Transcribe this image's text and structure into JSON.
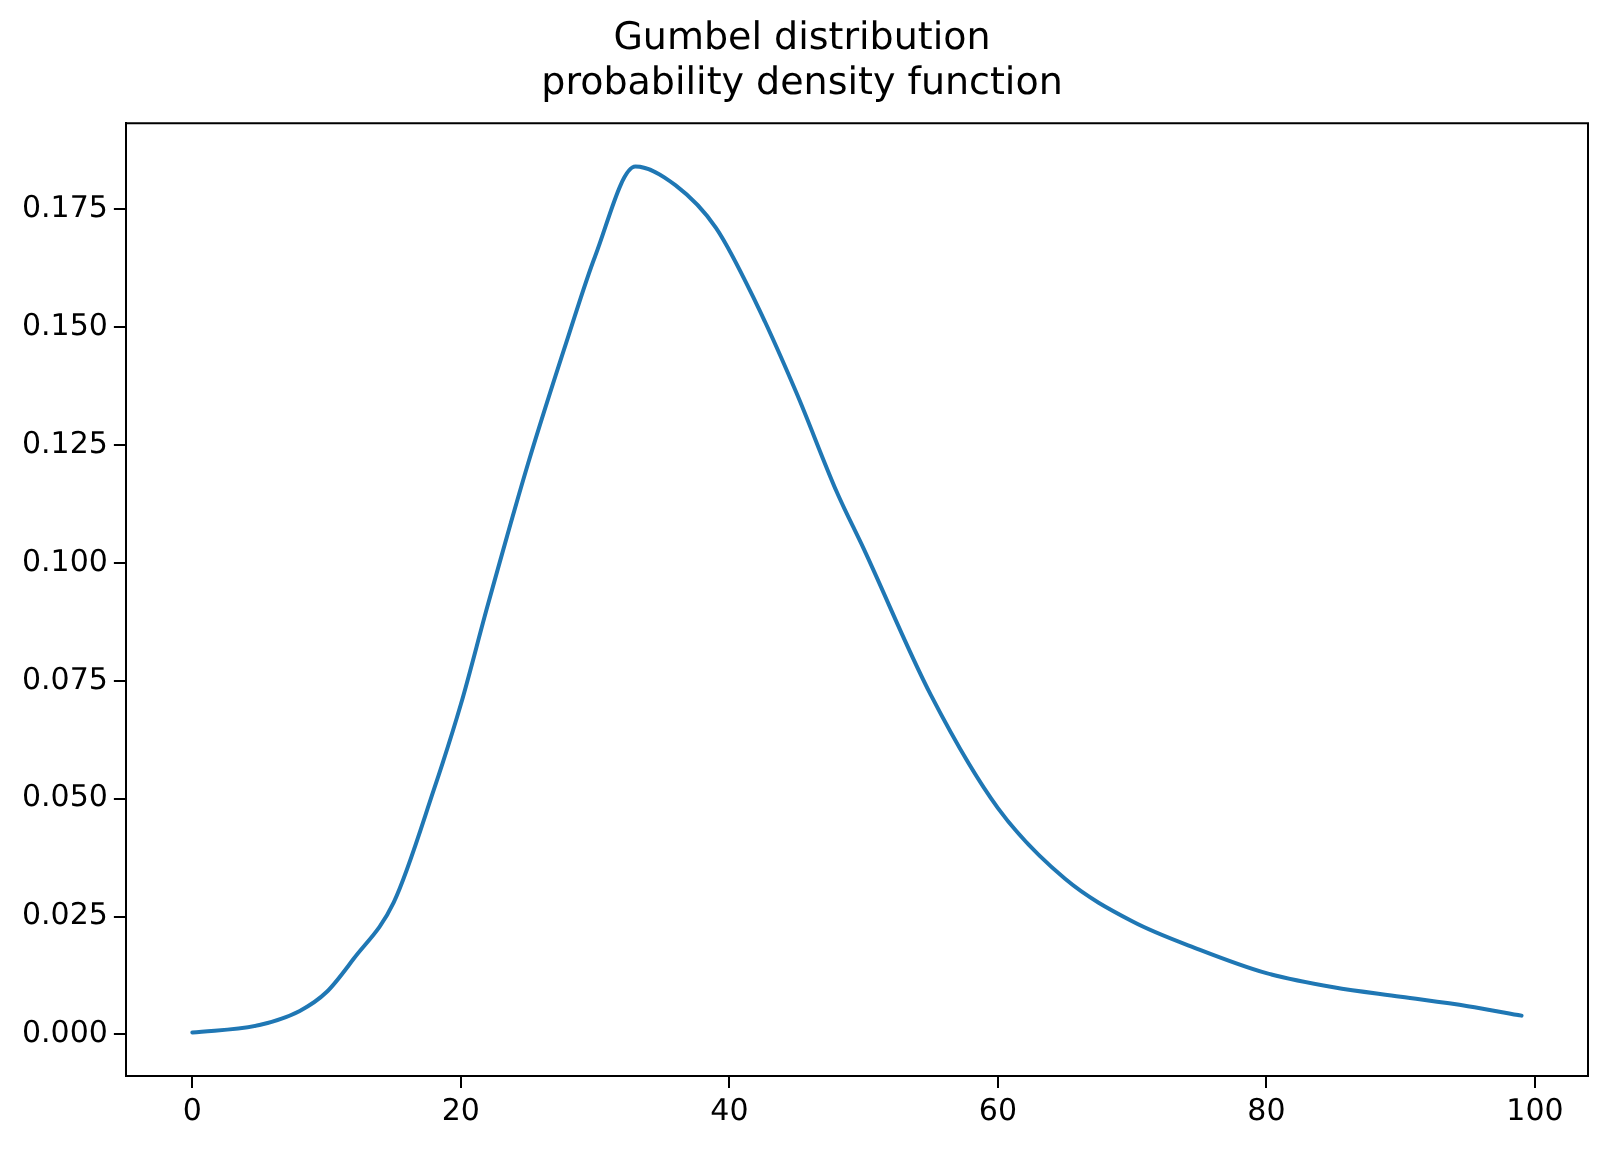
{
  "chart_data": {
    "type": "line",
    "title": "Gumbel distribution\nprobability density function",
    "x": [
      0,
      5,
      8,
      10,
      12,
      15,
      18,
      20,
      22,
      25,
      28,
      30,
      33,
      36,
      39,
      42,
      45,
      48,
      50,
      55,
      60,
      65,
      70,
      75,
      80,
      85,
      90,
      95,
      99
    ],
    "series": [
      {
        "color": "#1f77b4",
        "values": [
          0.0004,
          0.002,
          0.005,
          0.009,
          0.016,
          0.028,
          0.052,
          0.07,
          0.091,
          0.121,
          0.148,
          0.165,
          0.184,
          0.18,
          0.171,
          0.155,
          0.136,
          0.115,
          0.103,
          0.072,
          0.048,
          0.033,
          0.024,
          0.018,
          0.013,
          0.01,
          0.008,
          0.006,
          0.004
        ]
      }
    ],
    "xlim": [
      -4.95,
      103.95
    ],
    "xticks": [
      0,
      20,
      40,
      60,
      80,
      100
    ],
    "ylim": [
      -0.0088,
      0.1932
    ],
    "yticks": [
      {
        "value": 0,
        "label": "0.000"
      },
      {
        "value": 0.025,
        "label": "0.025"
      },
      {
        "value": 0.05,
        "label": "0.050"
      },
      {
        "value": 0.075,
        "label": "0.075"
      },
      {
        "value": 0.1,
        "label": "0.100"
      },
      {
        "value": 0.125,
        "label": "0.125"
      },
      {
        "value": 0.15,
        "label": "0.150"
      },
      {
        "value": 0.175,
        "label": "0.175"
      }
    ],
    "grid": false,
    "legend": false,
    "marker": "none",
    "line_style": "solid"
  }
}
